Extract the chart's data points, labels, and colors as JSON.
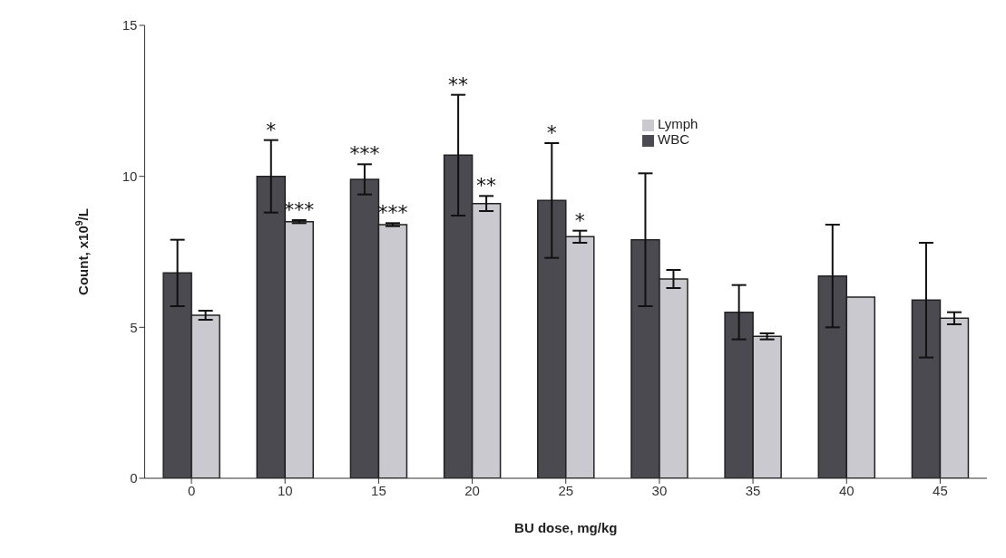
{
  "chart_data": {
    "type": "bar",
    "xlabel": "BU dose, mg/kg",
    "ylabel": "Count, x10$^{9}$/L",
    "categories": [
      "0",
      "10",
      "15",
      "20",
      "25",
      "30",
      "35",
      "40",
      "45"
    ],
    "series": [
      {
        "name": "WBC",
        "color": "#4a4a50",
        "values": [
          6.8,
          10.0,
          9.9,
          10.7,
          9.2,
          7.9,
          5.5,
          6.7,
          5.9
        ],
        "errors": [
          1.1,
          1.2,
          0.5,
          2.0,
          1.9,
          2.2,
          0.9,
          1.7,
          1.9
        ],
        "value_labels": [
          null,
          "*",
          "***",
          "**",
          "*",
          null,
          null,
          null,
          null
        ]
      },
      {
        "name": "Lymph",
        "color": "#c9c9cf",
        "values": [
          5.4,
          8.5,
          8.4,
          9.1,
          8.0,
          6.6,
          4.7,
          6.0,
          5.3
        ],
        "errors": [
          0.15,
          0.05,
          0.05,
          0.25,
          0.2,
          0.3,
          0.1,
          null,
          0.2
        ],
        "value_labels": [
          null,
          "***",
          "***",
          "**",
          "*",
          null,
          null,
          null,
          null
        ]
      }
    ],
    "ylim": [
      0,
      15
    ],
    "yticks": [
      0,
      5,
      10,
      15
    ],
    "grid": false,
    "legend": "top right"
  }
}
